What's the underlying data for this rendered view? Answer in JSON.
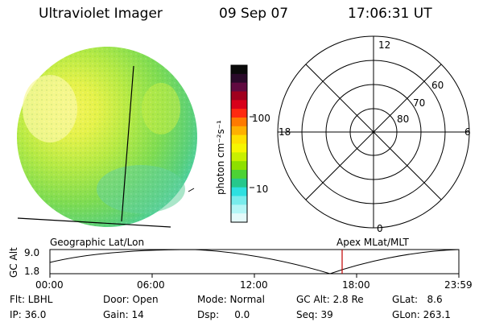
{
  "header": {
    "instrument": "Ultraviolet Imager",
    "date": "09 Sep 07",
    "time": "17:06:31 UT"
  },
  "colorbar": {
    "unit_label": "photon cm⁻²s⁻¹",
    "tick_labels": [
      "100",
      "10"
    ],
    "colors_top_to_bottom": [
      "#0a0a0a",
      "#2a0a2a",
      "#600a40",
      "#a0001e",
      "#d8001a",
      "#ff2a10",
      "#ff7a00",
      "#ffb000",
      "#ffe000",
      "#f6f600",
      "#c8f000",
      "#8ee000",
      "#4cd234",
      "#26c88c",
      "#2ee0e0",
      "#78ecec",
      "#b4f6f6",
      "#e4fafa"
    ]
  },
  "polar": {
    "mlt_labels": [
      "12",
      "18",
      "6",
      "0"
    ],
    "lat_labels": [
      "60",
      "70",
      "80"
    ]
  },
  "timeline": {
    "axis_title": "GC Alt",
    "y_ticks": [
      "9.0",
      "1.8"
    ],
    "left_label": "Geographic Lat/Lon",
    "right_label": "Apex MLat/MLT",
    "x_ticks": [
      "00:00",
      "06:00",
      "12:00",
      "18:00",
      "23:59"
    ]
  },
  "status": {
    "flt": "Flt: LBHL",
    "ip": "IP: 36.0",
    "door": "Door: Open",
    "gain": "Gain: 14",
    "mode": "Mode: Normal",
    "dsp": "Dsp:     0.0",
    "gc_alt": "GC Alt: 2.8 Re",
    "seq": "Seq: 39",
    "glat": "GLat:   8.6",
    "glon": "GLon: 263.1"
  }
}
